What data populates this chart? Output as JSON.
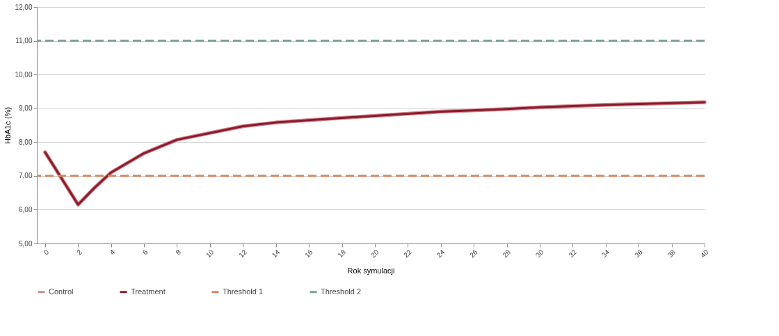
{
  "chart_data": {
    "type": "line",
    "xlabel": "Rok symulacji",
    "ylabel": "HbA1c (%)",
    "x": [
      0,
      2,
      3,
      4,
      6,
      8,
      10,
      12,
      14,
      16,
      20,
      24,
      28,
      30,
      34,
      40
    ],
    "series": [
      {
        "name": "Control",
        "color": "#d08890",
        "values": [
          7.7,
          6.15,
          6.65,
          7.1,
          7.67,
          8.07,
          8.27,
          8.47,
          8.58,
          8.65,
          8.78,
          8.9,
          8.98,
          9.03,
          9.1,
          9.18
        ]
      },
      {
        "name": "Treatment",
        "color": "#8b1a2a",
        "values": [
          7.7,
          6.15,
          6.65,
          7.1,
          7.67,
          8.07,
          8.27,
          8.47,
          8.58,
          8.65,
          8.78,
          8.9,
          8.98,
          9.03,
          9.1,
          9.18
        ]
      }
    ],
    "ref_lines": [
      {
        "axis": "y",
        "value": 7,
        "label": "Threshold 1",
        "color": "#d08a60",
        "line_style": "dashed"
      },
      {
        "axis": "y",
        "value": 11,
        "label": "Threshold 2",
        "color": "#7aa09a",
        "line_style": "dashed"
      }
    ],
    "xlim": [
      -0.5,
      40
    ],
    "xticks": [
      0,
      2,
      4,
      6,
      8,
      10,
      12,
      14,
      16,
      18,
      20,
      22,
      24,
      26,
      28,
      30,
      32,
      34,
      36,
      38,
      40
    ],
    "ylim": [
      5,
      12
    ],
    "yticks": [
      {
        "value": 5,
        "label": "5,00"
      },
      {
        "value": 6,
        "label": "6,00"
      },
      {
        "value": 7,
        "label": "7,00"
      },
      {
        "value": 8,
        "label": "8,00"
      },
      {
        "value": 9,
        "label": "9,00"
      },
      {
        "value": 10,
        "label": "10,00"
      },
      {
        "value": 11,
        "label": "11,00"
      },
      {
        "value": 12,
        "label": "12,00"
      }
    ],
    "grid": "y",
    "legend": "bottom",
    "marker": "none"
  }
}
